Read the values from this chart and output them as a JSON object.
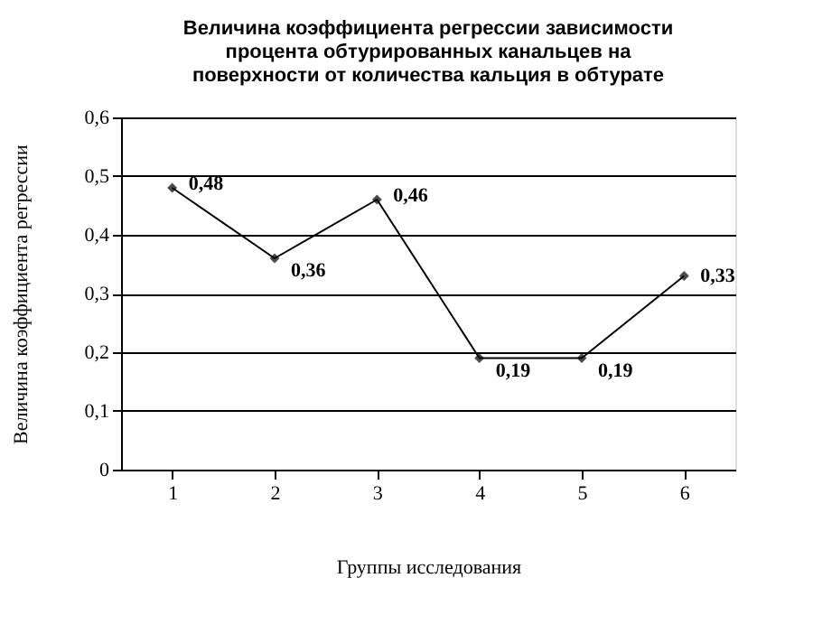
{
  "chart_data": {
    "type": "line",
    "title": [
      "Величина коэффициента регрессии зависимости",
      "процента обтурированных канальцев на",
      "поверхности от количества кальция в обтурате"
    ],
    "xlabel": "Группы исследования",
    "ylabel": "Величина коэффициента регрессии",
    "categories": [
      "1",
      "2",
      "3",
      "4",
      "5",
      "6"
    ],
    "series": [
      {
        "color": "#000000",
        "values": [
          0.48,
          0.36,
          0.46,
          0.19,
          0.19,
          0.33
        ],
        "value_labels": [
          "0,48",
          "0,36",
          "0,46",
          "0,19",
          "0,19",
          "0,33"
        ]
      }
    ],
    "ylim": [
      0,
      0.6
    ],
    "yticks": [
      {
        "value": 0,
        "label": "0"
      },
      {
        "value": 0.1,
        "label": "0,1"
      },
      {
        "value": 0.2,
        "label": "0,2"
      },
      {
        "value": 0.3,
        "label": "0,3"
      },
      {
        "value": 0.4,
        "label": "0,4"
      },
      {
        "value": 0.5,
        "label": "0,5"
      },
      {
        "value": 0.6,
        "label": "0,6"
      }
    ],
    "grid": "y",
    "marker": "diamond",
    "line_style": "solid"
  }
}
